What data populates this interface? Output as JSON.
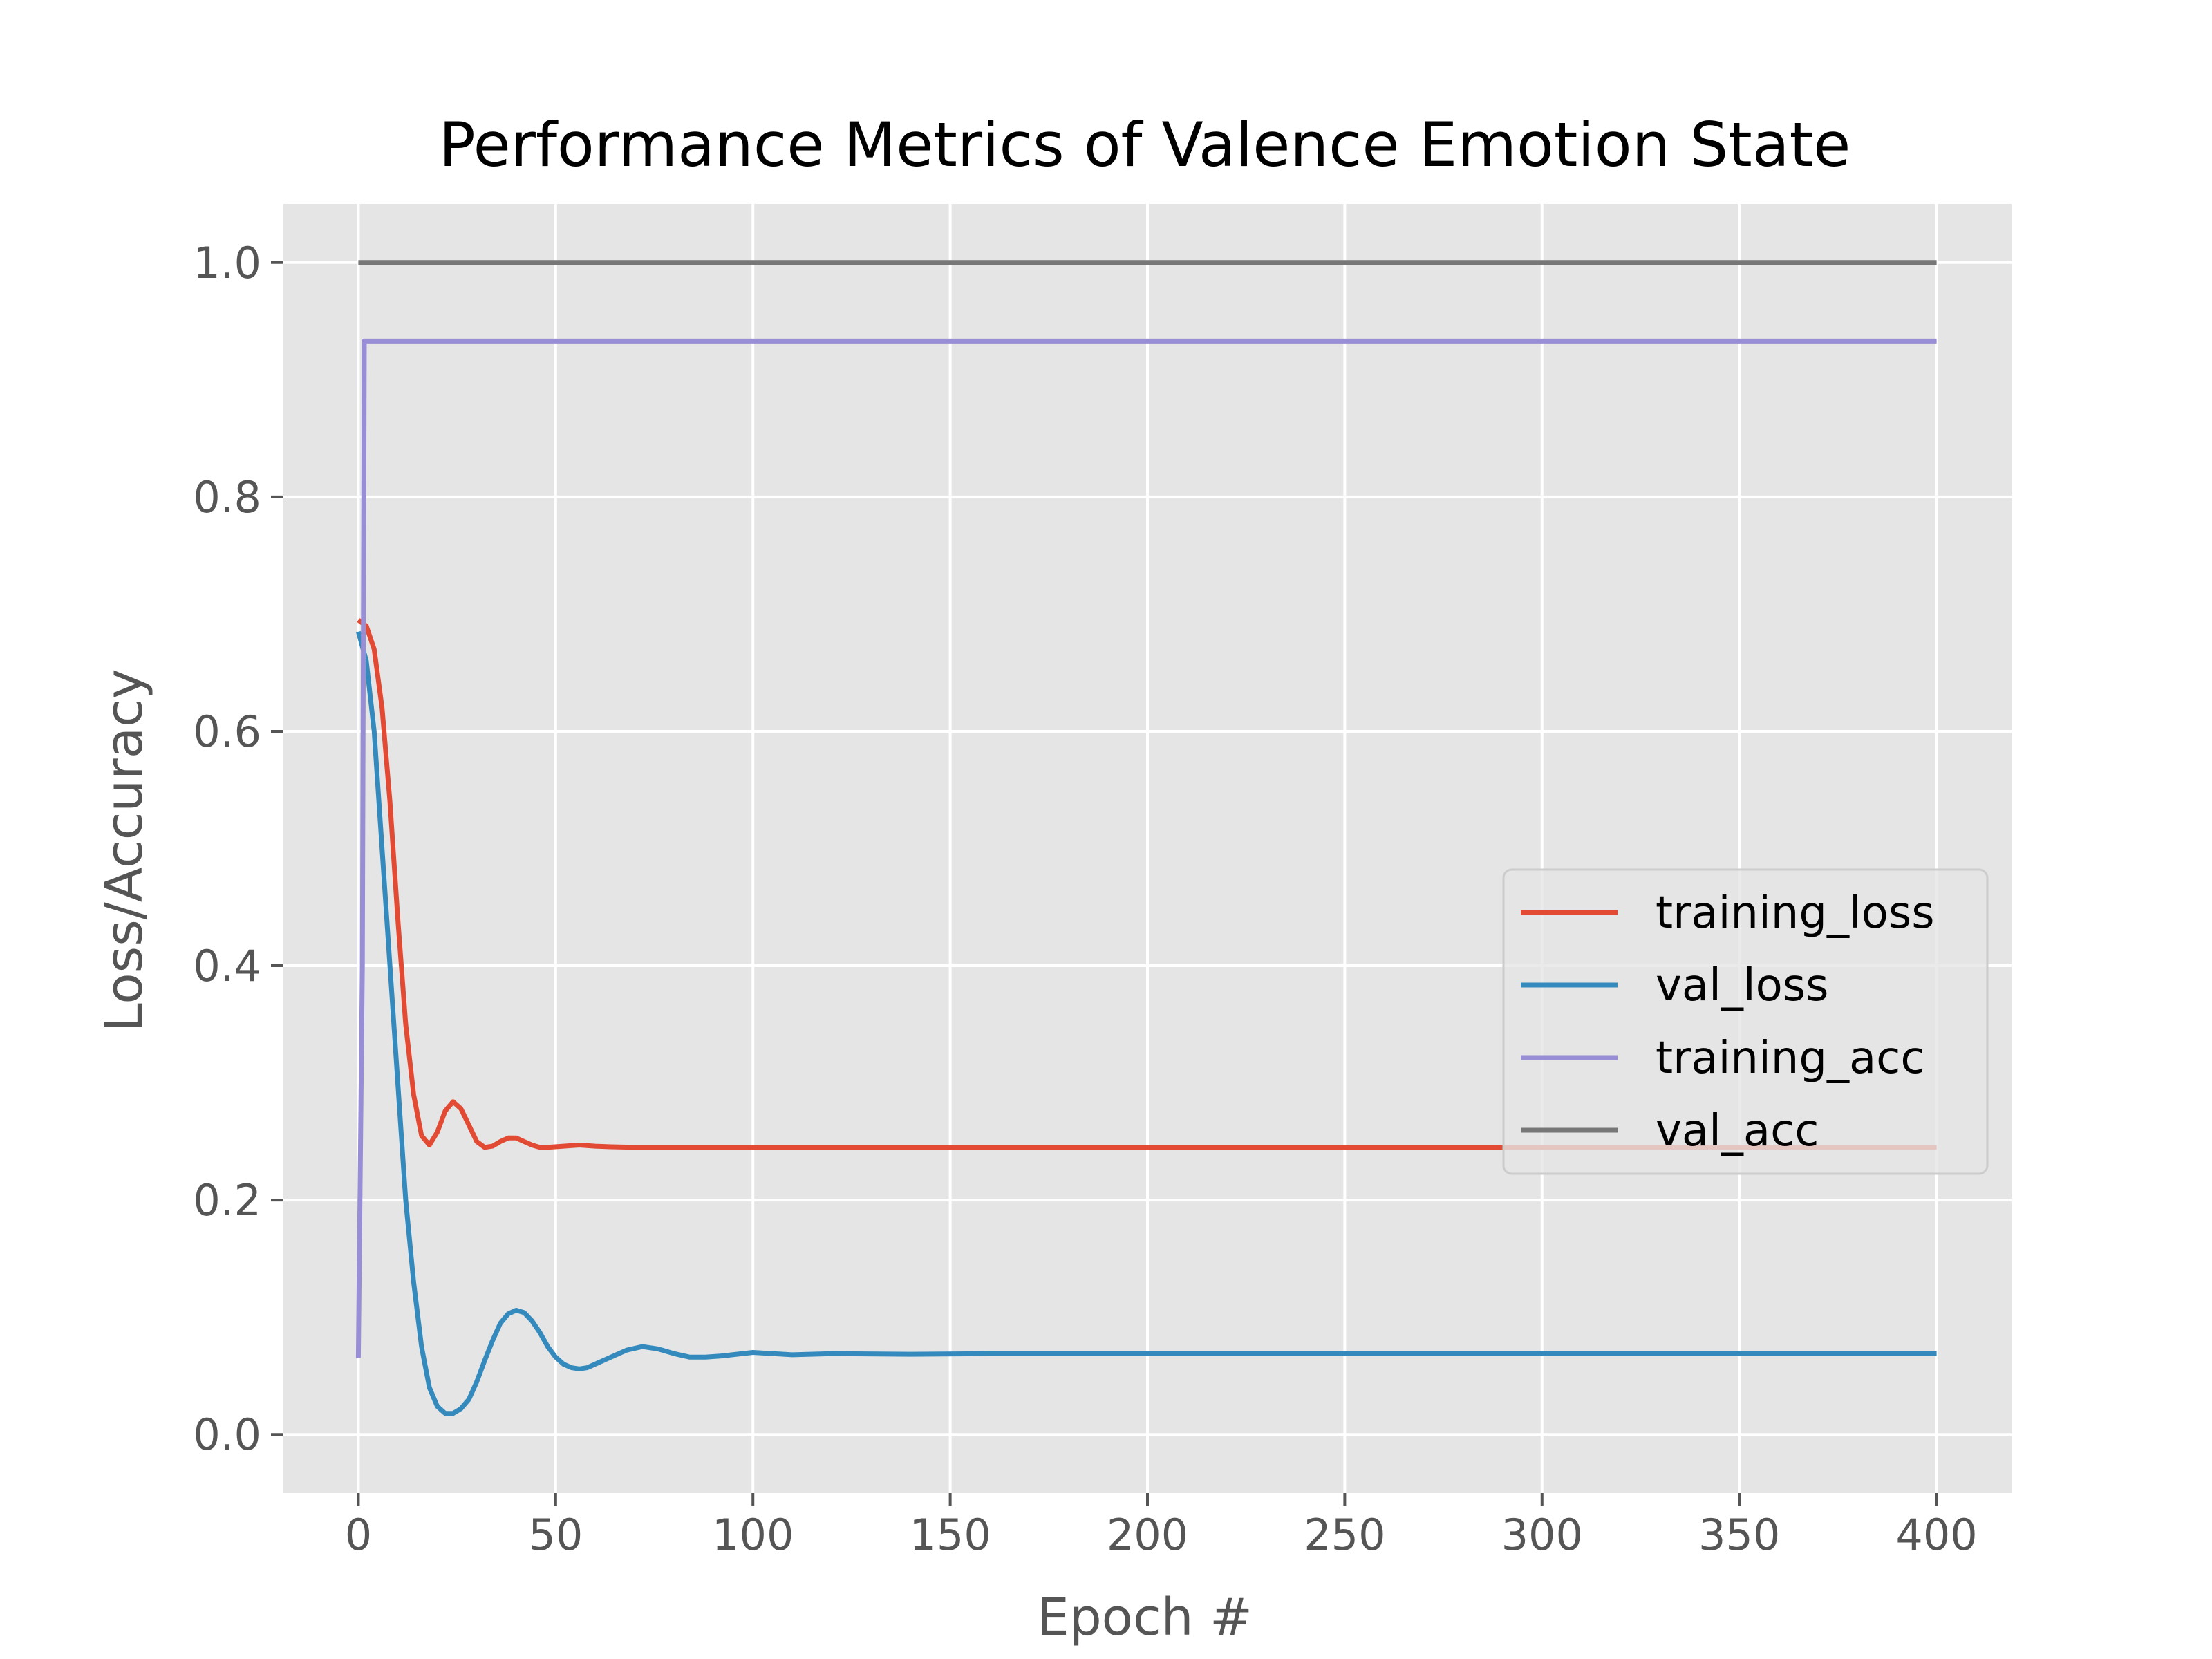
{
  "chart_data": {
    "type": "line",
    "title": "Performance Metrics of Valence Emotion State",
    "xlabel": "Epoch #",
    "ylabel": "Loss/Accuracy",
    "xlim": [
      -19,
      419
    ],
    "ylim": [
      -0.05,
      1.05
    ],
    "xticks": [
      0,
      50,
      100,
      150,
      200,
      250,
      300,
      350,
      400
    ],
    "xtick_labels": [
      "0",
      "50",
      "100",
      "150",
      "200",
      "250",
      "300",
      "350",
      "400"
    ],
    "yticks": [
      0.0,
      0.2,
      0.4,
      0.6,
      0.8,
      1.0
    ],
    "ytick_labels": [
      "0.0",
      "0.2",
      "0.4",
      "0.6",
      "0.8",
      "1.0"
    ],
    "grid": true,
    "background": "#e5e5e5",
    "legend_position": "center-right",
    "series": [
      {
        "name": "training_loss",
        "color": "#e24a33",
        "points": [
          [
            0,
            0.695
          ],
          [
            2,
            0.69
          ],
          [
            4,
            0.67
          ],
          [
            6,
            0.62
          ],
          [
            8,
            0.54
          ],
          [
            10,
            0.44
          ],
          [
            12,
            0.35
          ],
          [
            14,
            0.29
          ],
          [
            16,
            0.255
          ],
          [
            18,
            0.247
          ],
          [
            20,
            0.258
          ],
          [
            22,
            0.276
          ],
          [
            24,
            0.284
          ],
          [
            26,
            0.278
          ],
          [
            28,
            0.264
          ],
          [
            30,
            0.25
          ],
          [
            32,
            0.245
          ],
          [
            34,
            0.246
          ],
          [
            36,
            0.25
          ],
          [
            38,
            0.253
          ],
          [
            40,
            0.253
          ],
          [
            42,
            0.25
          ],
          [
            44,
            0.247
          ],
          [
            46,
            0.245
          ],
          [
            48,
            0.245
          ],
          [
            52,
            0.246
          ],
          [
            56,
            0.247
          ],
          [
            60,
            0.246
          ],
          [
            64,
            0.2455
          ],
          [
            70,
            0.245
          ],
          [
            80,
            0.245
          ],
          [
            100,
            0.245
          ],
          [
            150,
            0.245
          ],
          [
            200,
            0.245
          ],
          [
            250,
            0.245
          ],
          [
            300,
            0.245
          ],
          [
            350,
            0.245
          ],
          [
            400,
            0.245
          ]
        ]
      },
      {
        "name": "val_loss",
        "color": "#348abd",
        "points": [
          [
            0,
            0.685
          ],
          [
            2,
            0.66
          ],
          [
            4,
            0.6
          ],
          [
            6,
            0.5
          ],
          [
            8,
            0.4
          ],
          [
            10,
            0.3
          ],
          [
            12,
            0.2
          ],
          [
            14,
            0.13
          ],
          [
            16,
            0.075
          ],
          [
            18,
            0.04
          ],
          [
            20,
            0.024
          ],
          [
            22,
            0.018
          ],
          [
            24,
            0.018
          ],
          [
            26,
            0.022
          ],
          [
            28,
            0.03
          ],
          [
            30,
            0.045
          ],
          [
            32,
            0.063
          ],
          [
            34,
            0.08
          ],
          [
            36,
            0.095
          ],
          [
            38,
            0.103
          ],
          [
            40,
            0.106
          ],
          [
            42,
            0.104
          ],
          [
            44,
            0.097
          ],
          [
            46,
            0.087
          ],
          [
            48,
            0.075
          ],
          [
            50,
            0.066
          ],
          [
            52,
            0.06
          ],
          [
            54,
            0.057
          ],
          [
            56,
            0.056
          ],
          [
            58,
            0.057
          ],
          [
            60,
            0.06
          ],
          [
            64,
            0.066
          ],
          [
            68,
            0.072
          ],
          [
            72,
            0.075
          ],
          [
            76,
            0.073
          ],
          [
            80,
            0.069
          ],
          [
            84,
            0.066
          ],
          [
            88,
            0.066
          ],
          [
            92,
            0.067
          ],
          [
            100,
            0.07
          ],
          [
            110,
            0.068
          ],
          [
            120,
            0.069
          ],
          [
            140,
            0.0685
          ],
          [
            160,
            0.069
          ],
          [
            200,
            0.069
          ],
          [
            250,
            0.069
          ],
          [
            300,
            0.069
          ],
          [
            350,
            0.069
          ],
          [
            400,
            0.069
          ]
        ]
      },
      {
        "name": "training_acc",
        "color": "#988ed5",
        "points": [
          [
            0,
            0.065
          ],
          [
            1,
            0.4
          ],
          [
            1.5,
            0.933
          ],
          [
            10,
            0.933
          ],
          [
            50,
            0.933
          ],
          [
            100,
            0.933
          ],
          [
            200,
            0.933
          ],
          [
            300,
            0.933
          ],
          [
            400,
            0.933
          ]
        ]
      },
      {
        "name": "val_acc",
        "color": "#777777",
        "points": [
          [
            0,
            1.0
          ],
          [
            100,
            1.0
          ],
          [
            200,
            1.0
          ],
          [
            300,
            1.0
          ],
          [
            400,
            1.0
          ]
        ]
      }
    ]
  }
}
